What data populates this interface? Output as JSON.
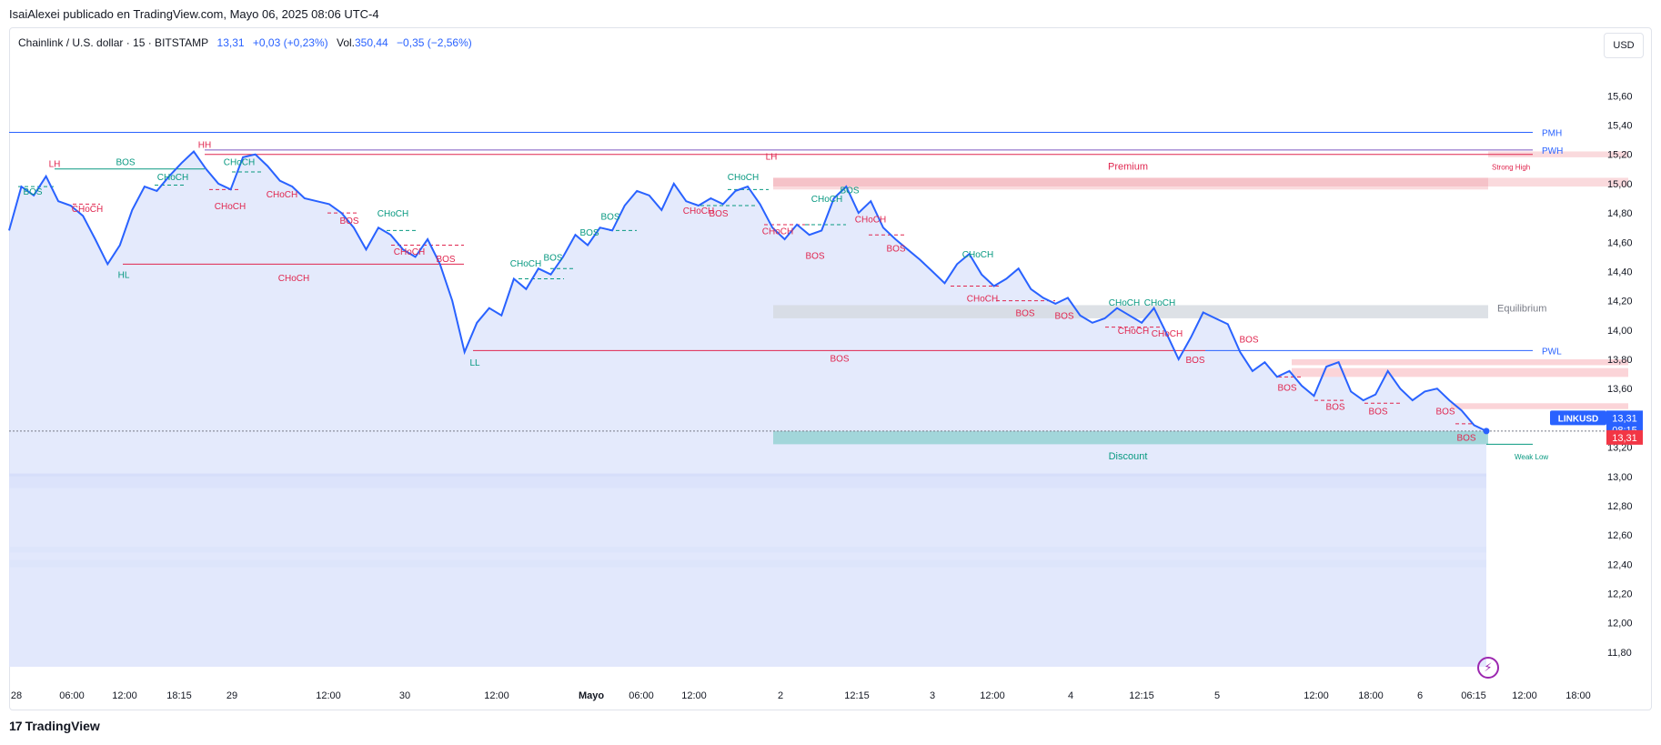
{
  "caption": "IsaiAlexei publicado en TradingView.com, Mayo 06, 2025 08:06 UTC-4",
  "legend": {
    "symbol": "Chainlink / U.S. dollar · 15 · BITSTAMP",
    "price": "13,31",
    "change": "+0,03 (+0,23%)",
    "vol_label": "Vol.",
    "vol_value": "350,44",
    "vol_change": "−0,35 (−2,56%)"
  },
  "currency": "USD",
  "brand": "TradingView",
  "colors": {
    "line": "#2962ff",
    "bearish": "#e0264f",
    "bullish": "#089981",
    "premium_zone": "#f3b3ba",
    "equilibrium_zone": "#d5d9e0",
    "discount_zone": "#8ccfcf"
  },
  "chart_data": {
    "type": "line",
    "series": [
      {
        "values": [
          14.68,
          14.98,
          14.92,
          15.05,
          14.88,
          14.85,
          14.78,
          14.62,
          14.45,
          14.58,
          14.82,
          14.98,
          14.95,
          15.05,
          15.14,
          15.22,
          15.1,
          15.0,
          14.96,
          15.18,
          15.2,
          15.12,
          15.02,
          14.98,
          14.9,
          14.88,
          14.86,
          14.8,
          14.7,
          14.55,
          14.7,
          14.65,
          14.55,
          14.5,
          14.62,
          14.45,
          14.2,
          13.85,
          14.05,
          14.15,
          14.1,
          14.35,
          14.28,
          14.42,
          14.38,
          14.5,
          14.65,
          14.58,
          14.7,
          14.68,
          14.85,
          14.95,
          14.92,
          14.82,
          15.0,
          14.88,
          14.85,
          14.9,
          14.86,
          14.95,
          14.98,
          14.86,
          14.7,
          14.62,
          14.72,
          14.65,
          14.68,
          14.9,
          14.98,
          14.8,
          14.88,
          14.7,
          14.62,
          14.55,
          14.48,
          14.4,
          14.32,
          14.45,
          14.52,
          14.38,
          14.3,
          14.35,
          14.42,
          14.28,
          14.22,
          14.18,
          14.22,
          14.1,
          14.05,
          14.08,
          14.15,
          14.1,
          14.05,
          14.15,
          13.98,
          13.8,
          13.95,
          14.12,
          14.08,
          14.04,
          13.85,
          13.72,
          13.78,
          13.68,
          13.72,
          13.62,
          13.55,
          13.75,
          13.78,
          13.58,
          13.52,
          13.56,
          13.72,
          13.6,
          13.52,
          13.58,
          13.6,
          13.52,
          13.45,
          13.35,
          13.31
        ]
      }
    ],
    "y_ticks": [
      "15,60",
      "15,40",
      "15,20",
      "15,00",
      "14,80",
      "14,60",
      "14,40",
      "14,20",
      "14,00",
      "13,80",
      "13,60",
      "13,40",
      "13,20",
      "13,00",
      "12,80",
      "12,60",
      "12,40",
      "12,20",
      "12,00",
      "11,80"
    ],
    "x_ticks": [
      "28",
      "06:00",
      "12:00",
      "18:15",
      "29",
      "12:00",
      "30",
      "12:00",
      "Mayo",
      "06:00",
      "12:00",
      "2",
      "12:15",
      "3",
      "12:00",
      "4",
      "12:15",
      "5",
      "12:00",
      "18:00",
      "6",
      "06:15",
      "12:00",
      "18:00"
    ],
    "ylim": [
      11.7,
      15.72
    ],
    "price_badges": {
      "symbol": "LINKUSD",
      "price": "13,31",
      "countdown": "08:15",
      "last": "13,31"
    },
    "levels": {
      "pmh": "PMH",
      "pwh": "PWH",
      "pwl": "PWL",
      "strong_high": "Strong High",
      "weak_low": "Weak Low",
      "premium": "Premium",
      "equilibrium": "Equilibrium",
      "discount": "Discount"
    },
    "annotations": {
      "bos": "BOS",
      "choch": "CHoCH",
      "hh": "HH",
      "lh": "LH",
      "hl": "HL",
      "ll": "LL"
    }
  }
}
